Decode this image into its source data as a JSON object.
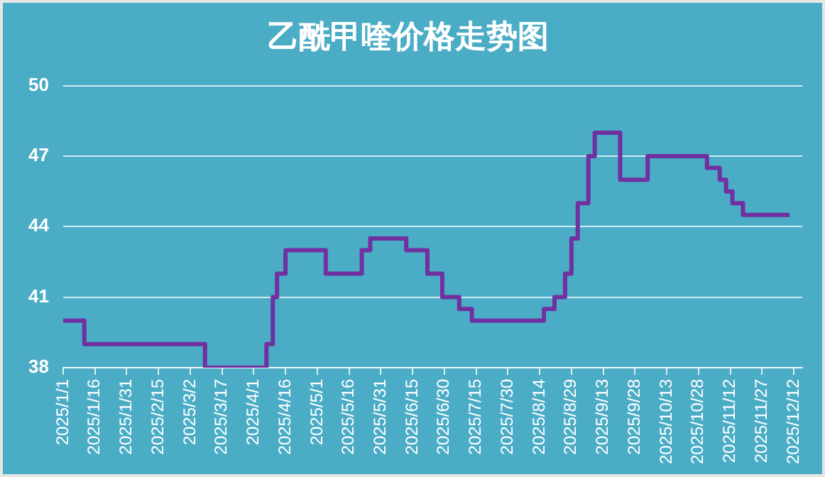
{
  "chart_data": {
    "type": "step",
    "title": "乙酰甲喹价格走势图",
    "x": [
      "2025-01-01",
      "2025-01-11",
      "2025-03-09",
      "2025-04-07",
      "2025-04-10",
      "2025-04-12",
      "2025-04-16",
      "2025-05-05",
      "2025-05-22",
      "2025-05-26",
      "2025-06-12",
      "2025-06-22",
      "2025-06-29",
      "2025-07-07",
      "2025-07-13",
      "2025-08-16",
      "2025-08-21",
      "2025-08-26",
      "2025-08-29",
      "2025-09-01",
      "2025-09-06",
      "2025-09-09",
      "2025-09-21",
      "2025-10-04",
      "2025-11-01",
      "2025-11-07",
      "2025-11-10",
      "2025-11-13",
      "2025-11-18",
      "2025-12-10"
    ],
    "series": [
      {
        "color": "#7030a0",
        "values": [
          40,
          39,
          38,
          39,
          41,
          42,
          43,
          42,
          43,
          43.5,
          43,
          42,
          41,
          40.5,
          40,
          40.5,
          41,
          42,
          43.5,
          45,
          47,
          48,
          46,
          47,
          46.5,
          46,
          45.5,
          45,
          44.5,
          44.5
        ]
      }
    ],
    "xlim": [
      "2025-01-01",
      "2025-12-16"
    ],
    "xticks": [
      {
        "value": "2025-01-01",
        "label": "2025/1/1"
      },
      {
        "value": "2025-01-16",
        "label": "2025/1/16"
      },
      {
        "value": "2025-01-31",
        "label": "2025/1/31"
      },
      {
        "value": "2025-02-15",
        "label": "2025/2/15"
      },
      {
        "value": "2025-03-02",
        "label": "2025/3/2"
      },
      {
        "value": "2025-03-17",
        "label": "2025/3/17"
      },
      {
        "value": "2025-04-01",
        "label": "2025/4/1"
      },
      {
        "value": "2025-04-16",
        "label": "2025/4/16"
      },
      {
        "value": "2025-05-01",
        "label": "2025/5/1"
      },
      {
        "value": "2025-05-16",
        "label": "2025/5/16"
      },
      {
        "value": "2025-05-31",
        "label": "2025/5/31"
      },
      {
        "value": "2025-06-15",
        "label": "2025/6/15"
      },
      {
        "value": "2025-06-30",
        "label": "2025/6/30"
      },
      {
        "value": "2025-07-15",
        "label": "2025/7/15"
      },
      {
        "value": "2025-07-30",
        "label": "2025/7/30"
      },
      {
        "value": "2025-08-14",
        "label": "2025/8/14"
      },
      {
        "value": "2025-08-29",
        "label": "2025/8/29"
      },
      {
        "value": "2025-09-13",
        "label": "2025/9/13"
      },
      {
        "value": "2025-09-28",
        "label": "2025/9/28"
      },
      {
        "value": "2025-10-13",
        "label": "2025/10/13"
      },
      {
        "value": "2025-10-28",
        "label": "2025/10/28"
      },
      {
        "value": "2025-11-12",
        "label": "2025/11/12"
      },
      {
        "value": "2025-11-27",
        "label": "2025/11/27"
      },
      {
        "value": "2025-12-12",
        "label": "2025/12/12"
      }
    ],
    "ylim": [
      38,
      50
    ],
    "yticks": [
      38,
      41,
      44,
      47,
      50
    ],
    "grid": "y",
    "legend": false,
    "marker": "none",
    "line_style": "solid"
  }
}
